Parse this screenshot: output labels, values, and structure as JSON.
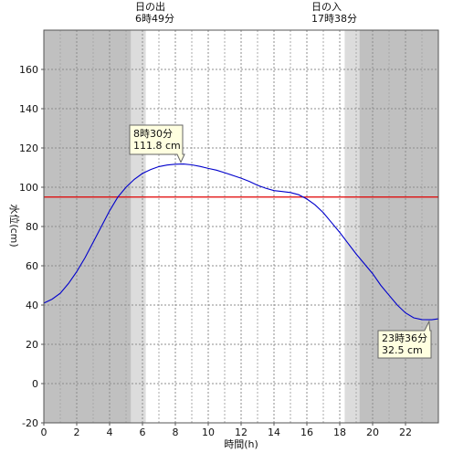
{
  "chart_data": {
    "type": "line",
    "xlabel": "時間(h)",
    "ylabel": "水位(cm)",
    "xlim": [
      0,
      24
    ],
    "ylim": [
      -20,
      180
    ],
    "xticks": [
      0,
      2,
      4,
      6,
      8,
      10,
      12,
      14,
      16,
      18,
      20,
      22
    ],
    "yticks": [
      -20,
      0,
      20,
      40,
      60,
      80,
      100,
      120,
      140,
      160
    ],
    "grid": true,
    "reference_line": {
      "y": 95,
      "color": "#e00000"
    },
    "sunrise": {
      "title": "日の出",
      "time": "6時49分",
      "hour": 6.817
    },
    "sunset": {
      "title": "日の入",
      "time": "17時38分",
      "hour": 17.633
    },
    "night_shading": {
      "dark_color": "#c0c0c0",
      "twilight_color": "#dcdcdc",
      "twilight_hours": [
        5.3,
        6.2,
        18.3,
        19.2
      ]
    },
    "series": [
      {
        "color": "#0000cc",
        "x": [
          0,
          0.5,
          1,
          1.5,
          2,
          2.5,
          3,
          3.5,
          4,
          4.5,
          5,
          5.5,
          6,
          6.5,
          7,
          7.5,
          8,
          8.5,
          9,
          9.5,
          10,
          10.5,
          11,
          11.5,
          12,
          12.5,
          13,
          13.5,
          14,
          14.5,
          15,
          15.5,
          16,
          16.5,
          17,
          17.5,
          18,
          18.5,
          19,
          19.5,
          20,
          20.5,
          21,
          21.5,
          22,
          22.5,
          23,
          23.6,
          24
        ],
        "y": [
          41,
          43,
          46,
          51,
          57,
          64,
          72,
          80,
          88,
          95,
          100,
          104,
          107,
          109,
          110.5,
          111.3,
          111.7,
          111.8,
          111.4,
          110.6,
          109.6,
          108.7,
          107.4,
          106,
          104.6,
          103,
          101,
          99.5,
          98.3,
          97.8,
          97.3,
          96.2,
          94,
          91,
          87,
          82,
          77,
          71.5,
          66,
          61,
          56,
          50,
          45,
          40,
          36,
          33.5,
          32.6,
          32.5,
          33
        ]
      }
    ],
    "annotations": [
      {
        "time": "8時30分",
        "value": "111.8 cm",
        "x": 8.5,
        "y": 111.8
      },
      {
        "time": "23時36分",
        "value": "32.5 cm",
        "x": 23.6,
        "y": 32.5
      }
    ]
  }
}
